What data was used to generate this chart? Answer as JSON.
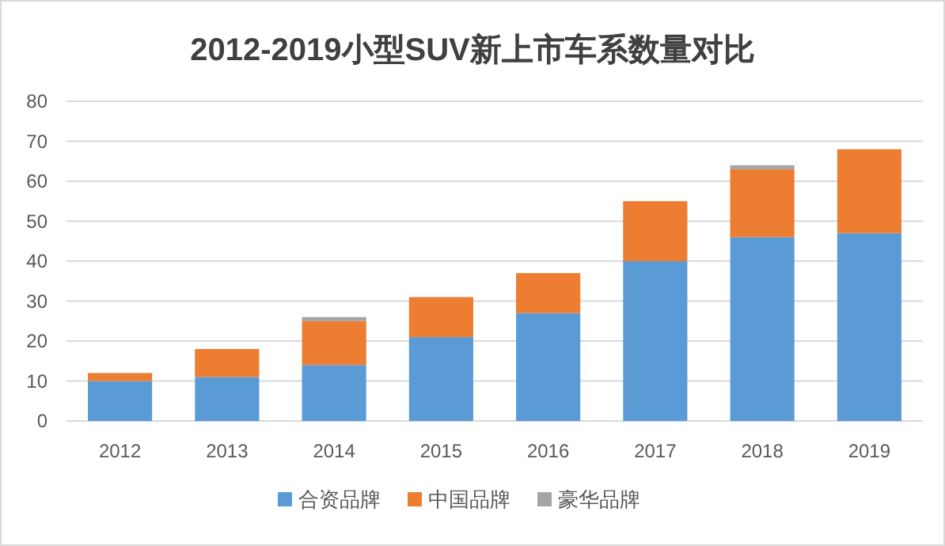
{
  "chart_data": {
    "type": "bar",
    "stacked": true,
    "title": "2012-2019小型SUV新上市车系数量对比",
    "categories": [
      "2012",
      "2013",
      "2014",
      "2015",
      "2016",
      "2017",
      "2018",
      "2019"
    ],
    "series": [
      {
        "name": "合资品牌",
        "color": "#5b9bd5",
        "values": [
          10,
          11,
          14,
          21,
          27,
          40,
          46,
          47
        ]
      },
      {
        "name": "中国品牌",
        "color": "#ed7d31",
        "values": [
          2,
          7,
          11,
          10,
          10,
          15,
          17,
          21
        ]
      },
      {
        "name": "豪华品牌",
        "color": "#a5a5a5",
        "values": [
          0,
          0,
          1,
          0,
          0,
          0,
          1,
          0
        ]
      }
    ],
    "ylim": [
      0,
      80
    ],
    "yticks": [
      0,
      10,
      20,
      30,
      40,
      50,
      60,
      70,
      80
    ],
    "grid": "y",
    "legend": "bottom"
  }
}
